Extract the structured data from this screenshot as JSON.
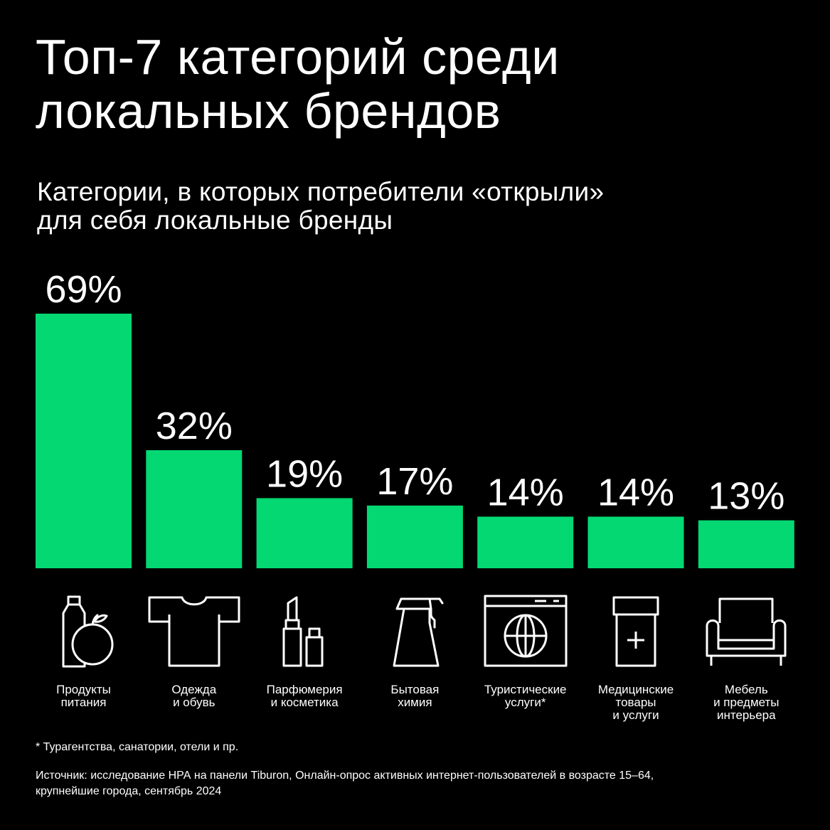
{
  "title": [
    "Топ-7 категорий среди",
    "локальных брендов"
  ],
  "subtitle": [
    "Категории, в которых потребители «открыли»",
    "для себя локальные бренды"
  ],
  "colors": {
    "bar": "#03D873",
    "background": "#000000",
    "text": "#ffffff"
  },
  "chart_data": {
    "type": "bar",
    "title": "Топ-7 категорий среди локальных брендов",
    "subtitle": "Категории, в которых потребители «открыли» для себя локальные бренды",
    "unit": "%",
    "ylim": [
      0,
      69
    ],
    "grid": false,
    "categories": [
      "Продукты питания",
      "Одежда и обувь",
      "Парфюмерия и косметика",
      "Бытовая химия",
      "Туристические услуги*",
      "Медицинские товары и услуги",
      "Мебель и предметы интерьера"
    ],
    "values": [
      69,
      32,
      19,
      17,
      14,
      14,
      13
    ],
    "value_labels": [
      "69%",
      "32%",
      "19%",
      "17%",
      "14%",
      "14%",
      "13%"
    ]
  },
  "categories": [
    {
      "lines": [
        "Продукты",
        "питания"
      ],
      "icon": "grocery-icon"
    },
    {
      "lines": [
        "Одежда",
        "и обувь"
      ],
      "icon": "tshirt-icon"
    },
    {
      "lines": [
        "Парфюмерия",
        "и косметика"
      ],
      "icon": "lipstick-icon"
    },
    {
      "lines": [
        "Бытовая",
        "химия"
      ],
      "icon": "spray-bottle-icon"
    },
    {
      "lines": [
        "Туристические",
        "услуги*"
      ],
      "icon": "travel-globe-icon"
    },
    {
      "lines": [
        "Медицинские",
        "товары",
        "и услуги"
      ],
      "icon": "medicine-icon"
    },
    {
      "lines": [
        "Мебель",
        "и предметы",
        "интерьера"
      ],
      "icon": "armchair-icon"
    }
  ],
  "footnote": "* Турагентства, санатории, отели и пр.",
  "source": [
    "Источник: исследование НРА на панели Tiburon, Онлайн-опрос активных интернет-пользователей в возрасте 15–64,",
    "крупнейшие города, сентябрь 2024"
  ]
}
